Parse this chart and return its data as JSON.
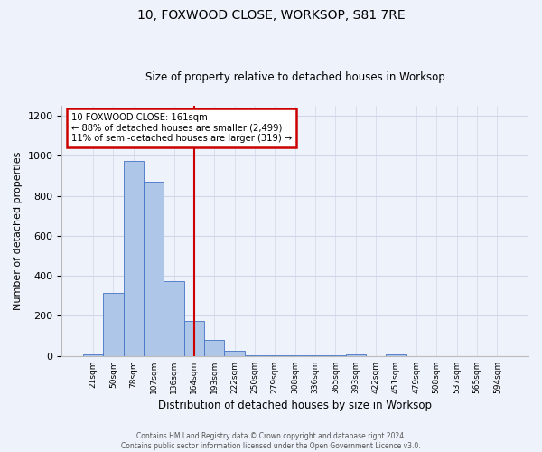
{
  "title": "10, FOXWOOD CLOSE, WORKSOP, S81 7RE",
  "subtitle": "Size of property relative to detached houses in Worksop",
  "xlabel": "Distribution of detached houses by size in Worksop",
  "ylabel": "Number of detached properties",
  "footer_line1": "Contains HM Land Registry data © Crown copyright and database right 2024.",
  "footer_line2": "Contains public sector information licensed under the Open Government Licence v3.0.",
  "bin_labels": [
    "21sqm",
    "50sqm",
    "78sqm",
    "107sqm",
    "136sqm",
    "164sqm",
    "193sqm",
    "222sqm",
    "250sqm",
    "279sqm",
    "308sqm",
    "336sqm",
    "365sqm",
    "393sqm",
    "422sqm",
    "451sqm",
    "479sqm",
    "508sqm",
    "537sqm",
    "565sqm",
    "594sqm"
  ],
  "bar_heights": [
    10,
    315,
    975,
    870,
    375,
    175,
    80,
    25,
    5,
    5,
    5,
    5,
    5,
    10,
    0,
    10,
    0,
    0,
    0,
    0,
    0
  ],
  "bar_color": "#aec6e8",
  "bar_edge_color": "#4472c4",
  "grid_color": "#d0d8e8",
  "background_color": "#eef2fa",
  "red_line_bin_index": 5,
  "red_line_color": "#cc0000",
  "annotation_text": "10 FOXWOOD CLOSE: 161sqm\n← 88% of detached houses are smaller (2,499)\n11% of semi-detached houses are larger (319) →",
  "annotation_box_color": "white",
  "annotation_box_edge_color": "#cc0000",
  "ylim": [
    0,
    1250
  ],
  "yticks": [
    0,
    200,
    400,
    600,
    800,
    1000,
    1200
  ]
}
